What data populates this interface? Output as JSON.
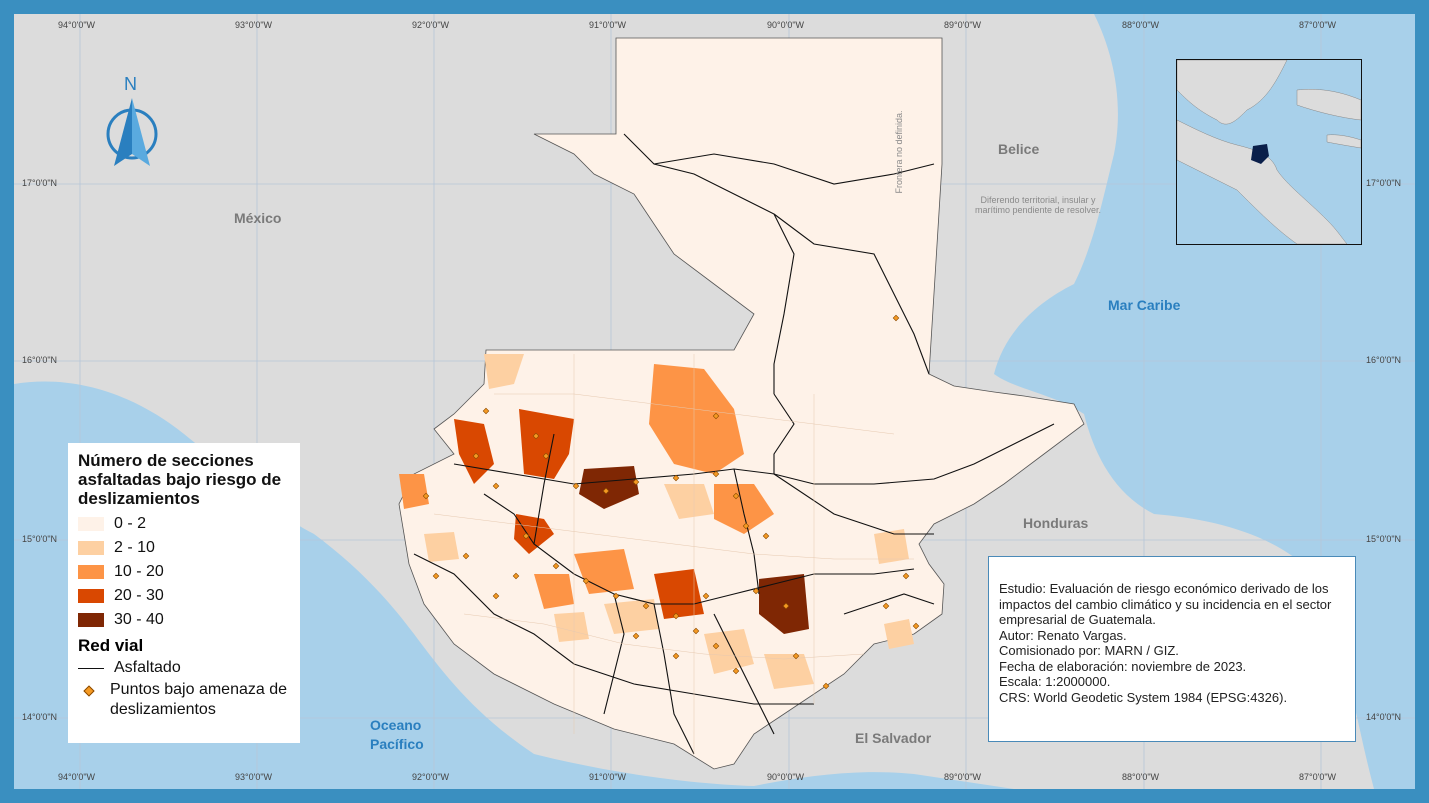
{
  "graticule": {
    "top": [
      "94°0'0\"W",
      "93°0'0\"W",
      "92°0'0\"W",
      "91°0'0\"W",
      "90°0'0\"W",
      "89°0'0\"W",
      "88°0'0\"W",
      "87°0'0\"W"
    ],
    "bottom": [
      "94°0'0\"W",
      "93°0'0\"W",
      "92°0'0\"W",
      "91°0'0\"W",
      "90°0'0\"W",
      "89°0'0\"W",
      "88°0'0\"W",
      "87°0'0\"W"
    ],
    "left": [
      "17°0'0\"N",
      "16°0'0\"N",
      "15°0'0\"N",
      "14°0'0\"N"
    ],
    "right": [
      "17°0'0\"N",
      "16°0'0\"N",
      "15°0'0\"N",
      "14°0'0\"N"
    ]
  },
  "labels": {
    "mexico": "México",
    "belice": "Belice",
    "honduras": "Honduras",
    "el_salvador": "El Salvador",
    "mar_caribe": "Mar Caribe",
    "oceano_line1": "Oceano",
    "oceano_line2": "Pacífico",
    "frontera": "Frontera no definida.",
    "diferendo": "Diferendo territorial, insular y marítimo pendiente de resolver."
  },
  "north_arrow": {
    "letter": "N"
  },
  "legend": {
    "title": "Número de secciones asfaltadas bajo riesgo de deslizamientos",
    "classes": [
      {
        "label": "0 - 2",
        "color": "#fef2e8"
      },
      {
        "label": "2 - 10",
        "color": "#fdd0a2"
      },
      {
        "label": "10 - 20",
        "color": "#fd9446"
      },
      {
        "label": "20 - 30",
        "color": "#d94801"
      },
      {
        "label": "30 - 40",
        "color": "#7f2704"
      }
    ],
    "red_vial_title": "Red vial",
    "asfaltado_label": "Asfaltado",
    "puntos_label": "Puntos bajo amenaza de deslizamientos"
  },
  "info": {
    "lines": [
      "Estudio: Evaluación de riesgo económico derivado de los impactos del cambio climático y su incidencia en el sector empresarial de Guatemala.",
      "Autor: Renato Vargas.",
      "Comisionado por: MARN / GIZ.",
      "Fecha de elaboración: noviembre de 2023.",
      "Escala: 1:2000000.",
      "CRS: World Geodetic System 1984 (EPSG:4326)."
    ]
  },
  "colors": {
    "frame": "#3a8fc0",
    "sea": "#a8d0ea",
    "land": "#dcdcdc",
    "guatemala_base": "#fef2e8",
    "road": "#111111",
    "point": "#f59a23"
  }
}
